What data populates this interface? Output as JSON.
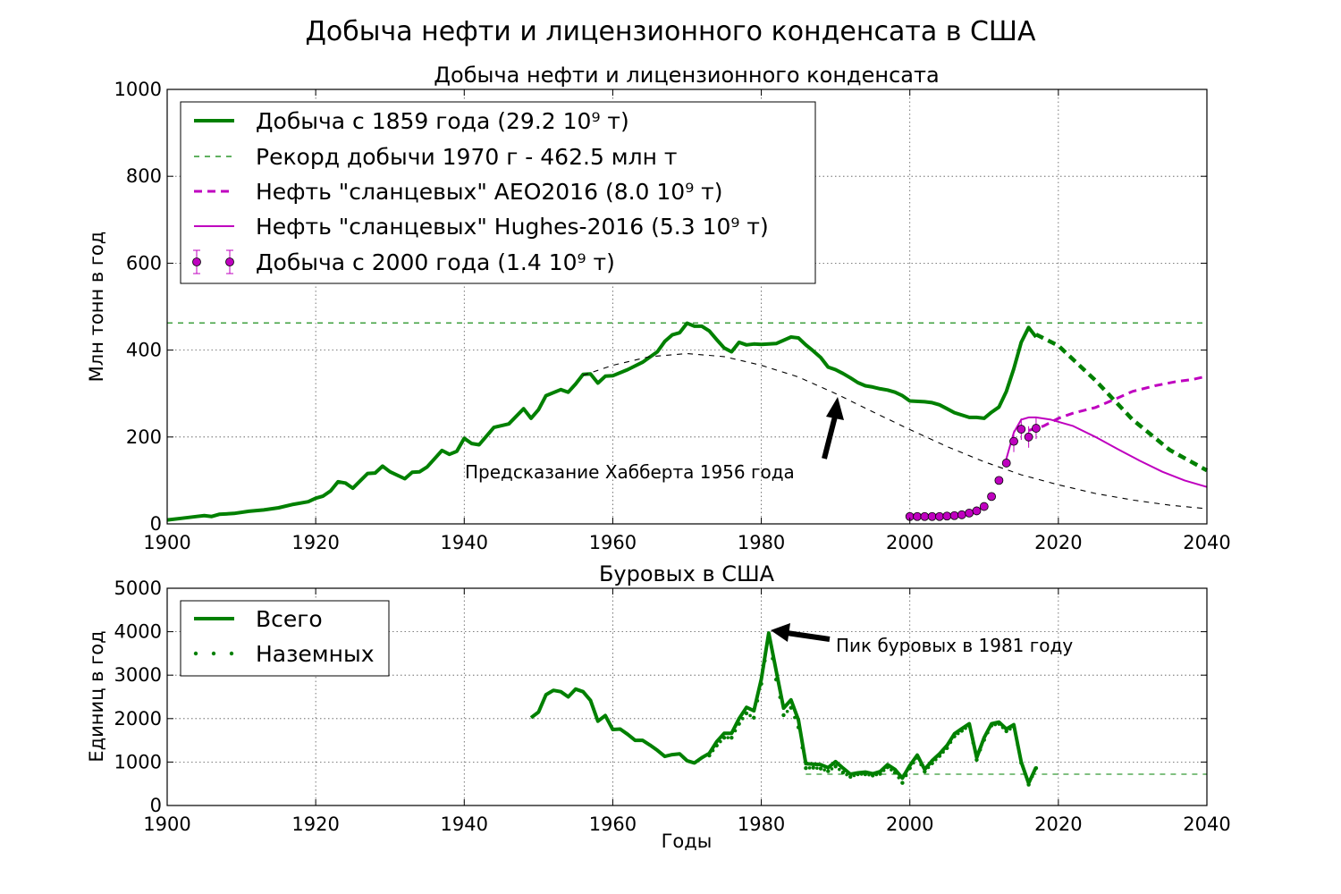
{
  "figure": {
    "suptitle": "Добыча нефти и лицензионного конденсата в США"
  },
  "colors": {
    "green": "#008000",
    "magenta": "#bf00bf",
    "black": "#000000",
    "grid": "#777777"
  },
  "chart_data": [
    {
      "type": "line",
      "title": "Добыча нефти и лицензионного конденсата",
      "xlabel": "",
      "ylabel": "Млн тонн в год",
      "xlim": [
        1900,
        2040
      ],
      "ylim": [
        0,
        1000
      ],
      "xticks": [
        "1900",
        "1920",
        "1940",
        "1960",
        "1980",
        "2000",
        "2020",
        "2040"
      ],
      "yticks": [
        "0",
        "200",
        "400",
        "600",
        "800",
        "1000"
      ],
      "grid": true,
      "legend_position": "top-left",
      "legend": [
        "Добыча с 1859 года (29.2 10⁹ т)",
        "Рекорд добычи 1970 г - 462.5 млн т",
        "Нефть \"сланцевых\" AEO2016 (8.0 10⁹ т)",
        "Нефть \"сланцевых\" Hughes-2016 (5.3 10⁹ т)",
        "Добыча с 2000 года (1.4 10⁹ т)"
      ],
      "series": [
        {
          "legend_index": 0,
          "style": "solid-thick",
          "color": "#008000",
          "x": [
            1900,
            1902,
            1904,
            1905,
            1906,
            1907,
            1909,
            1911,
            1913,
            1915,
            1917,
            1919,
            1920,
            1921,
            1922,
            1923,
            1924,
            1925,
            1927,
            1928,
            1929,
            1930,
            1932,
            1933,
            1934,
            1935,
            1937,
            1938,
            1939,
            1940,
            1941,
            1942,
            1944,
            1946,
            1948,
            1949,
            1950,
            1951,
            1953,
            1954,
            1955,
            1956,
            1957,
            1958,
            1959,
            1960,
            1962,
            1964,
            1966,
            1967,
            1968,
            1969,
            1970,
            1971,
            1972,
            1973,
            1974,
            1975,
            1976,
            1977,
            1978,
            1979,
            1980,
            1982,
            1984,
            1985,
            1986,
            1987,
            1988,
            1989,
            1990,
            1991,
            1992,
            1993,
            1994,
            1995,
            1996,
            1997,
            1998,
            1999,
            2000,
            2002,
            2003,
            2004,
            2005,
            2006,
            2008,
            2009,
            2010,
            2011,
            2012,
            2013,
            2014,
            2015,
            2016,
            2017
          ],
          "y": [
            9,
            13,
            17,
            19,
            17,
            22,
            24,
            29,
            32,
            37,
            45,
            51,
            59,
            64,
            76,
            97,
            94,
            82,
            116,
            117,
            133,
            120,
            104,
            119,
            120,
            131,
            169,
            160,
            167,
            197,
            185,
            182,
            222,
            230,
            265,
            243,
            263,
            295,
            309,
            303,
            322,
            344,
            345,
            324,
            340,
            341,
            355,
            372,
            396,
            420,
            435,
            440,
            462,
            455,
            455,
            444,
            424,
            405,
            396,
            418,
            412,
            414,
            413,
            415,
            430,
            428,
            412,
            398,
            383,
            361,
            355,
            346,
            336,
            325,
            318,
            315,
            311,
            308,
            303,
            295,
            283,
            281,
            279,
            274,
            265,
            256,
            245,
            245,
            243,
            257,
            269,
            305,
            357,
            418,
            452,
            430
          ]
        },
        {
          "legend_index": 0,
          "style": "dashed-thick",
          "color": "#008000",
          "x": [
            2017,
            2020,
            2025,
            2030,
            2035,
            2040
          ],
          "y": [
            436,
            410,
            330,
            240,
            170,
            123
          ]
        },
        {
          "legend_index": 1,
          "style": "dashed-thin",
          "color": "#008000",
          "x": [
            1900,
            2040
          ],
          "y": [
            462.5,
            462.5
          ]
        },
        {
          "legend_index": 2,
          "style": "dashed-thick",
          "color": "#bf00bf",
          "x": [
            2016,
            2018,
            2020,
            2022,
            2025,
            2028,
            2030,
            2033,
            2036,
            2038,
            2040
          ],
          "y": [
            215,
            225,
            243,
            255,
            268,
            290,
            305,
            318,
            328,
            332,
            340
          ]
        },
        {
          "legend_index": 3,
          "style": "solid",
          "color": "#bf00bf",
          "x": [
            2013,
            2014,
            2015,
            2016,
            2017,
            2019,
            2022,
            2025,
            2028,
            2031,
            2034,
            2037,
            2040
          ],
          "y": [
            150,
            210,
            240,
            245,
            245,
            240,
            225,
            200,
            172,
            145,
            120,
            100,
            85
          ]
        },
        {
          "legend_index": 4,
          "style": "markers-errorbars",
          "color": "#bf00bf",
          "x": [
            2000,
            2001,
            2002,
            2003,
            2004,
            2005,
            2006,
            2007,
            2008,
            2009,
            2010,
            2011,
            2012,
            2013,
            2014,
            2015,
            2016,
            2017
          ],
          "y": [
            17,
            17,
            17,
            17,
            17,
            18,
            19,
            21,
            25,
            30,
            40,
            63,
            100,
            140,
            190,
            218,
            200,
            220
          ]
        },
        {
          "legend_index": null,
          "style": "dashed-thin",
          "color": "#000000",
          "x": [
            1956,
            1960,
            1965,
            1970,
            1975,
            1980,
            1985,
            1990,
            1995,
            2000,
            2005,
            2010,
            2015,
            2020,
            2025,
            2030,
            2035,
            2040
          ],
          "y": [
            342,
            365,
            385,
            392,
            385,
            365,
            338,
            300,
            258,
            217,
            178,
            143,
            113,
            90,
            70,
            55,
            43,
            35
          ]
        }
      ],
      "annotations": [
        {
          "text": "Предсказание Хабберта 1956 года",
          "arrow_to": [
            1990,
            295
          ]
        }
      ]
    },
    {
      "type": "line",
      "title": "Буровых в США",
      "xlabel": "Годы",
      "ylabel": "Единиц в год",
      "xlim": [
        1900,
        2040
      ],
      "ylim": [
        0,
        5000
      ],
      "xticks": [
        "1900",
        "1920",
        "1940",
        "1960",
        "1980",
        "2000",
        "2020",
        "2040"
      ],
      "yticks": [
        "0",
        "1000",
        "2000",
        "3000",
        "4000",
        "5000"
      ],
      "grid": true,
      "legend_position": "top-left",
      "legend": [
        "Всего",
        "Наземных"
      ],
      "series": [
        {
          "legend_index": 0,
          "style": "solid-thick",
          "color": "#008000",
          "x": [
            1949,
            1950,
            1951,
            1952,
            1953,
            1954,
            1955,
            1956,
            1957,
            1958,
            1959,
            1960,
            1961,
            1962,
            1963,
            1964,
            1965,
            1966,
            1967,
            1968,
            1969,
            1970,
            1971,
            1972,
            1973,
            1974,
            1975,
            1976,
            1977,
            1978,
            1979,
            1980,
            1981,
            1982,
            1983,
            1984,
            1985,
            1986,
            1987,
            1988,
            1989,
            1990,
            1991,
            1992,
            1993,
            1994,
            1995,
            1996,
            1997,
            1998,
            1999,
            2000,
            2001,
            2002,
            2003,
            2004,
            2005,
            2006,
            2007,
            2008,
            2009,
            2010,
            2011,
            2012,
            2013,
            2014,
            2015,
            2016,
            2017
          ],
          "y": [
            2020,
            2150,
            2550,
            2650,
            2620,
            2500,
            2680,
            2620,
            2420,
            1940,
            2070,
            1750,
            1760,
            1640,
            1500,
            1500,
            1390,
            1270,
            1130,
            1170,
            1190,
            1030,
            980,
            1100,
            1200,
            1470,
            1660,
            1660,
            2000,
            2260,
            2180,
            2910,
            3970,
            3100,
            2240,
            2430,
            1970,
            960,
            950,
            940,
            870,
            1010,
            860,
            720,
            750,
            770,
            730,
            780,
            940,
            830,
            630,
            920,
            1160,
            830,
            1030,
            1190,
            1380,
            1650,
            1770,
            1880,
            1100,
            1560,
            1880,
            1920,
            1760,
            1860,
            1000,
            510,
            880
          ]
        },
        {
          "legend_index": 1,
          "style": "dotted",
          "color": "#008000",
          "x": [
            1973,
            1974,
            1975,
            1976,
            1977,
            1978,
            1979,
            1980,
            1981,
            1982,
            1983,
            1984,
            1985,
            1986,
            1987,
            1988,
            1989,
            1990,
            1991,
            1992,
            1993,
            1994,
            1995,
            1996,
            1997,
            1998,
            1999,
            2000,
            2001,
            2002,
            2003,
            2004,
            2005,
            2006,
            2007,
            2008,
            2009,
            2010,
            2011,
            2012,
            2013,
            2014,
            2015,
            2016,
            2017
          ],
          "y": [
            1150,
            1380,
            1560,
            1560,
            1880,
            2120,
            2020,
            2800,
            3860,
            2900,
            2080,
            2250,
            1800,
            860,
            870,
            850,
            790,
            900,
            760,
            660,
            720,
            720,
            690,
            730,
            880,
            760,
            520,
            860,
            1100,
            780,
            970,
            1140,
            1320,
            1590,
            1720,
            1830,
            1050,
            1510,
            1840,
            1880,
            1710,
            1810,
            980,
            480,
            860
          ]
        },
        {
          "legend_index": null,
          "style": "dashed-thin",
          "color": "#008000",
          "x": [
            1986,
            2040
          ],
          "y": [
            720,
            720
          ]
        }
      ],
      "annotations": [
        {
          "text": "Пик буровых в 1981 году",
          "arrow_to": [
            1981,
            3980
          ]
        }
      ]
    }
  ]
}
